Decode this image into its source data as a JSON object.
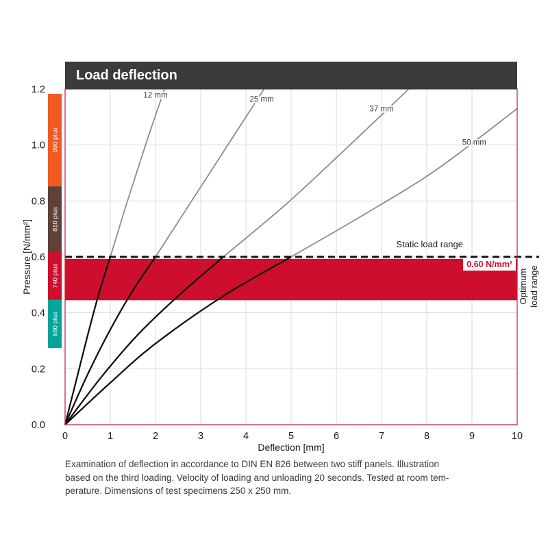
{
  "title": "Load deflection",
  "caption_lines": [
    "Examination of deflection in accordance to DIN EN 826 between two stiff panels. Illustration",
    "based on the third loading. Velocity of loading and unloading 20 seconds. Tested at room tem-",
    "perature. Dimensions of test specimens 250 x 250 mm."
  ],
  "right_label": {
    "line1": "Optimum",
    "line2": "load range"
  },
  "colors": {
    "title_bar": "#3b3a3c",
    "grid": "#dadada",
    "border": "#cf2745",
    "band_red": "#ce0e2d",
    "curve_gray": "#8c8c8c",
    "curve_black": "#121212",
    "tick_text": "#1a1a1a",
    "curve_label_text": "#3c3c3c",
    "dashed_line": "#141414"
  },
  "chart_data": {
    "type": "line",
    "title": "Load deflection",
    "xlabel": "Deflection [mm]",
    "ylabel": "Pressure [N/mm²]",
    "xlim": [
      0,
      10
    ],
    "ylim": [
      0,
      1.2
    ],
    "xticks": [
      0,
      1,
      2,
      3,
      4,
      5,
      6,
      7,
      8,
      9,
      10
    ],
    "yticks": [
      0.0,
      0.2,
      0.4,
      0.6,
      0.8,
      1.0,
      1.2
    ],
    "grid": true,
    "black_below": 0.6,
    "series": [
      {
        "name": "12 mm",
        "label_pos": [
          2.0,
          1.17
        ],
        "points": [
          [
            0,
            0
          ],
          [
            0.25,
            0.16
          ],
          [
            0.5,
            0.32
          ],
          [
            0.75,
            0.47
          ],
          [
            1.0,
            0.6
          ],
          [
            1.4,
            0.81
          ],
          [
            1.8,
            1.01
          ],
          [
            2.2,
            1.2
          ]
        ]
      },
      {
        "name": "25 mm",
        "label_pos": [
          4.35,
          1.155
        ],
        "points": [
          [
            0,
            0
          ],
          [
            0.5,
            0.18
          ],
          [
            1.0,
            0.34
          ],
          [
            1.5,
            0.48
          ],
          [
            2.0,
            0.6
          ],
          [
            2.8,
            0.8
          ],
          [
            3.6,
            1.0
          ],
          [
            4.4,
            1.2
          ]
        ]
      },
      {
        "name": "37 mm",
        "label_pos": [
          7.0,
          1.12
        ],
        "points": [
          [
            0,
            0
          ],
          [
            0.8,
            0.17
          ],
          [
            1.6,
            0.32
          ],
          [
            2.5,
            0.46
          ],
          [
            3.5,
            0.6
          ],
          [
            4.9,
            0.79
          ],
          [
            6.3,
            1.0
          ],
          [
            7.6,
            1.2
          ]
        ]
      },
      {
        "name": "50 mm",
        "label_pos": [
          9.05,
          1.0
        ],
        "points": [
          [
            0,
            0
          ],
          [
            1.0,
            0.15
          ],
          [
            2.0,
            0.29
          ],
          [
            3.5,
            0.46
          ],
          [
            5.0,
            0.6
          ],
          [
            6.6,
            0.75
          ],
          [
            8.2,
            0.91
          ],
          [
            10,
            1.13
          ]
        ]
      }
    ],
    "optimum_band": {
      "from": 0.445,
      "to": 0.593,
      "label": "Optimum load range",
      "color": "#ce0e2d"
    },
    "static_load": {
      "value": 0.6,
      "label": "Static load range",
      "value_label": "0.60 N/mm²"
    },
    "left_bar": [
      {
        "label": "990 plus",
        "from": 0.852,
        "to": 1.183,
        "color": "#f15a25"
      },
      {
        "label": "810 plus",
        "from": 0.617,
        "to": 0.852,
        "color": "#5e4137"
      },
      {
        "label": "740 plus",
        "from": 0.446,
        "to": 0.617,
        "color": "#ce0e2d"
      },
      {
        "label": "680 plus",
        "from": 0.274,
        "to": 0.446,
        "color": "#00a69a"
      }
    ]
  }
}
